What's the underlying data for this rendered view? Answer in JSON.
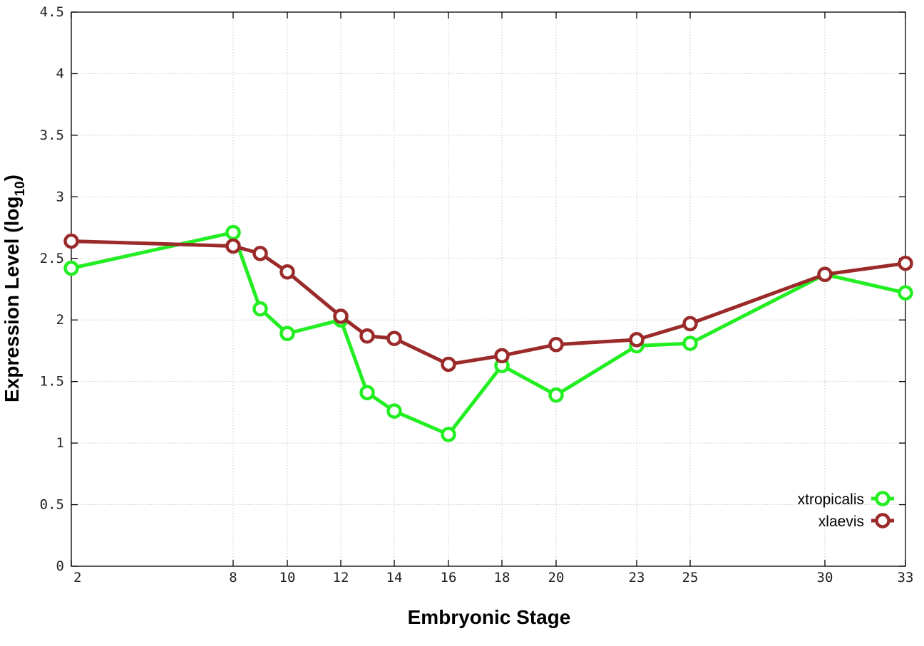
{
  "chart_data": {
    "type": "line",
    "xlabel": "Embryonic Stage",
    "ylabel_main": "Expression Level (log",
    "ylabel_sub": "10",
    "ylabel_close": ")",
    "xlim": [
      2,
      33
    ],
    "ylim": [
      0,
      4.5
    ],
    "x_scale": "ordinal stages (irregular spacing)",
    "x_ticks": [
      "2",
      "8",
      "10",
      "12",
      "14",
      "16",
      "18",
      "20",
      "23",
      "25",
      "30",
      "33"
    ],
    "y_ticks": [
      "0",
      "0.5",
      "1",
      "1.5",
      "2",
      "2.5",
      "3",
      "3.5",
      "4",
      "4.5"
    ],
    "grid": true,
    "legend_position": "bottom-right",
    "series": [
      {
        "name": "xtropicalis",
        "color": "#22ee22",
        "x": [
          2,
          8,
          9,
          10,
          12,
          13,
          14,
          16,
          18,
          20,
          23,
          25,
          30,
          33
        ],
        "values": [
          2.42,
          2.71,
          2.09,
          1.89,
          2.0,
          1.41,
          1.26,
          1.07,
          1.63,
          1.39,
          1.79,
          1.81,
          2.37,
          2.22
        ]
      },
      {
        "name": "xlaevis",
        "color": "#9b2a2a",
        "x": [
          2,
          8,
          9,
          10,
          12,
          13,
          14,
          16,
          18,
          20,
          23,
          25,
          30,
          33
        ],
        "values": [
          2.64,
          2.6,
          2.54,
          2.39,
          2.03,
          1.87,
          1.85,
          1.64,
          1.71,
          1.8,
          1.84,
          1.97,
          2.37,
          2.46
        ]
      }
    ]
  }
}
